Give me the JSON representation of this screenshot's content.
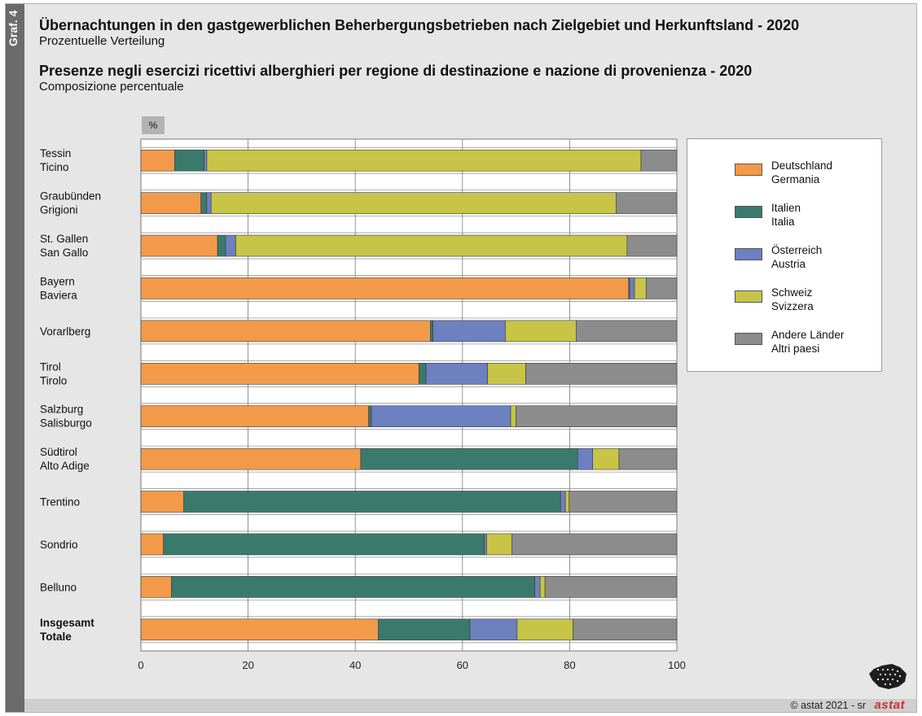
{
  "header": {
    "graf_label": "Graf. 4",
    "title_de": "Übernachtungen in den gastgewerblichen Beherbergungsbetrieben nach Zielgebiet und Herkunftsland - 2020",
    "subtitle_de": "Prozentuelle Verteilung",
    "title_it": "Presenze negli esercizi ricettivi alberghieri per regione di destinazione e nazione di provenienza - 2020",
    "subtitle_it": "Composizione percentuale"
  },
  "unit_label": "%",
  "footer": {
    "copyright": "© astat 2021 - sr",
    "logo": "astat"
  },
  "chart_data": {
    "type": "bar",
    "orientation": "horizontal",
    "stacked": true,
    "xlim": [
      0,
      100
    ],
    "x_ticks": [
      "0",
      "20",
      "40",
      "60",
      "80",
      "100"
    ],
    "grid": true,
    "legend_position": "right",
    "categories": [
      [
        "Tessin",
        "Ticino"
      ],
      [
        "Graubünden",
        "Grigioni"
      ],
      [
        "St. Gallen",
        "San Gallo"
      ],
      [
        "Bayern",
        "Baviera"
      ],
      [
        "Vorarlberg"
      ],
      [
        "Tirol",
        "Tirolo"
      ],
      [
        "Salzburg",
        "Salisburgo"
      ],
      [
        "Südtirol",
        "Alto Adige"
      ],
      [
        "Trentino"
      ],
      [
        "Sondrio"
      ],
      [
        "Belluno"
      ],
      [
        "Insgesamt",
        "Totale"
      ]
    ],
    "bold_categories": [
      11
    ],
    "series": [
      {
        "name": [
          "Deutschland",
          "Germania"
        ],
        "color": "#f29a4a",
        "values": [
          6.3,
          11.2,
          14.3,
          91.0,
          54.0,
          51.9,
          42.5,
          41.0,
          8.0,
          4.2,
          5.7,
          44.3
        ]
      },
      {
        "name": [
          "Italien",
          "Italia"
        ],
        "color": "#3a7a6c",
        "values": [
          5.5,
          1.1,
          1.5,
          0.2,
          0.5,
          1.3,
          0.5,
          40.5,
          70.3,
          59.9,
          67.8,
          17.1
        ]
      },
      {
        "name": [
          "Österreich",
          "Austria"
        ],
        "color": "#6d80c0",
        "values": [
          0.5,
          0.8,
          1.9,
          0.9,
          13.5,
          11.5,
          26.0,
          2.8,
          0.9,
          0.4,
          1.0,
          8.8
        ]
      },
      {
        "name": [
          "Schweiz",
          "Svizzera"
        ],
        "color": "#c7c447",
        "values": [
          81.0,
          75.6,
          73.0,
          2.2,
          13.2,
          7.1,
          1.0,
          4.9,
          0.7,
          4.7,
          0.9,
          10.4
        ]
      },
      {
        "name": [
          "Andere Länder",
          "Altri paesi"
        ],
        "color": "#8c8c8c",
        "values": [
          6.7,
          11.3,
          9.3,
          5.7,
          18.8,
          28.2,
          30.0,
          10.8,
          20.1,
          30.8,
          24.6,
          19.4
        ]
      }
    ]
  }
}
